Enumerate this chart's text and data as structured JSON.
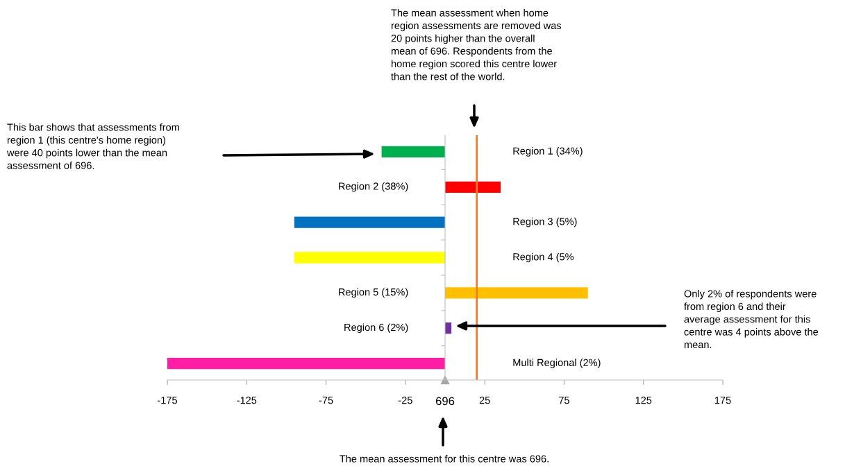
{
  "chart_data": {
    "type": "bar",
    "orientation": "horizontal",
    "categories": [
      "Region 1 (34%)",
      "Region 2 (38%)",
      "Region 3 (5%)",
      "Region 4 (5%",
      "Region 5 (15%)",
      "Region 6 (2%)",
      "Multi Regional (2%)"
    ],
    "values": [
      -40,
      35,
      -95,
      -95,
      90,
      4,
      -175
    ],
    "colors": [
      "#00b050",
      "#ff0000",
      "#0070c0",
      "#ffff00",
      "#ffc000",
      "#7030a0",
      "#ff1fa5"
    ],
    "xlim": [
      -175,
      175
    ],
    "xticks": [
      -175,
      -125,
      -75,
      -25,
      25,
      75,
      125,
      175
    ],
    "ref_lines": [
      {
        "axis": "x",
        "value": 20,
        "color": "#ed7d31"
      }
    ],
    "annotations": [
      "This bar shows that assessments from\nregion 1 (this centre's home region)\nwere 40 points lower than the mean\nassessment of 696.",
      "The mean assessment when home\nregion assessments are removed was\n20 points higher than the overall\nmean of 696. Respondents from the\nhome region scored this centre lower\nthan the rest of the world.",
      "Only 2% of respondents were\nfrom region 6 and their\naverage assessment for this\ncentre was 4 points above the\nmean.",
      "The mean assessment for this centre was 696.",
      "696"
    ]
  }
}
